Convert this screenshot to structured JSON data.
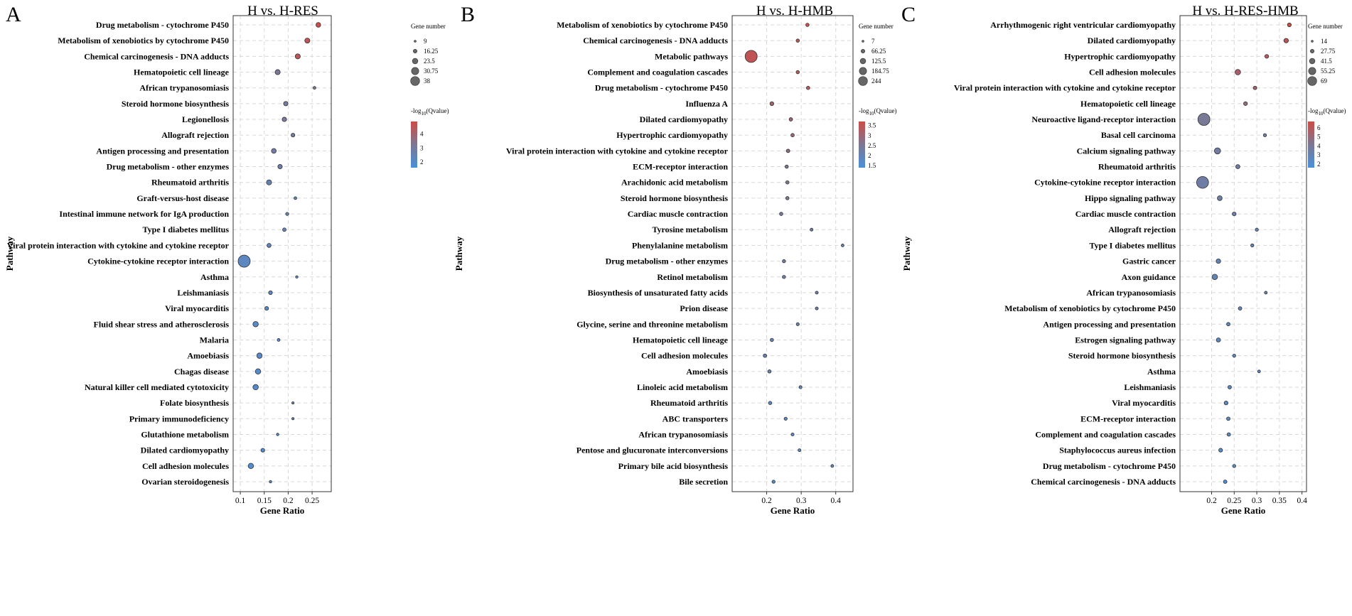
{
  "panels": [
    {
      "letter": "A",
      "title": "H vs. H-RES",
      "xlabel": "Gene Ratio",
      "ylabel": "Pathway"
    },
    {
      "letter": "B",
      "title": "H vs. H-HMB",
      "xlabel": "Gene Ratio",
      "ylabel": "Pathway"
    },
    {
      "letter": "C",
      "title": "H vs. H-RES-HMB",
      "xlabel": "Gene Ratio",
      "ylabel": "Pathway"
    }
  ],
  "legend_labels": {
    "size_title": "Gene number",
    "color_title": "-log",
    "color_sub": "10",
    "color_tail": "(Qvalue)"
  },
  "colors": {
    "high": "#cf4b45",
    "mid": "#7b7793",
    "low": "#4a90d9"
  },
  "chart_data": [
    {
      "type": "scatter",
      "title": "H vs. H-RES",
      "xlabel": "Gene Ratio",
      "ylabel": "Pathway",
      "xlim": [
        0.085,
        0.29
      ],
      "xticks": [
        0.1,
        0.15,
        0.2,
        0.25
      ],
      "xtick_labels": [
        "0.1",
        "0.15",
        "0.2",
        "0.25"
      ],
      "size_legend": [
        9,
        16.25,
        23.5,
        30.75,
        38
      ],
      "size_range": [
        9,
        38
      ],
      "color_legend": [
        4,
        3,
        2
      ],
      "color_range": [
        1.6,
        4.9
      ],
      "categories": [
        "Drug metabolism - cytochrome P450",
        "Metabolism of xenobiotics by cytochrome P450",
        "Chemical carcinogenesis - DNA adducts",
        "Hematopoietic cell lineage",
        "African trypanosomiasis",
        "Steroid hormone biosynthesis",
        "Legionellosis",
        "Allograft rejection",
        "Antigen processing and presentation",
        "Drug metabolism - other enzymes",
        "Rheumatoid arthritis",
        "Graft-versus-host disease",
        "Intestinal immune network for IgA production",
        "Type I diabetes mellitus",
        "Viral protein interaction with cytokine and cytokine receptor",
        "Cytokine-cytokine receptor interaction",
        "Asthma",
        "Leishmaniasis",
        "Viral myocarditis",
        "Fluid shear stress and atherosclerosis",
        "Malaria",
        "Amoebiasis",
        "Chagas disease",
        "Natural killer cell mediated cytotoxicity",
        "Folate biosynthesis",
        "Primary immunodeficiency",
        "Glutathione metabolism",
        "Dilated cardiomyopathy",
        "Cell adhesion molecules",
        "Ovarian steroidogenesis"
      ],
      "gene_ratio": [
        0.263,
        0.24,
        0.22,
        0.178,
        0.255,
        0.195,
        0.192,
        0.21,
        0.17,
        0.183,
        0.16,
        0.215,
        0.198,
        0.192,
        0.16,
        0.108,
        0.218,
        0.163,
        0.155,
        0.132,
        0.18,
        0.14,
        0.137,
        0.132,
        0.21,
        0.21,
        0.178,
        0.147,
        0.122,
        0.163
      ],
      "gene_number": [
        15,
        16,
        16,
        16,
        9,
        14,
        14,
        12,
        15,
        14,
        16,
        9,
        10,
        11,
        13,
        38,
        8,
        12,
        12,
        17,
        9,
        17,
        17,
        17,
        7,
        7,
        8,
        12,
        17,
        8
      ],
      "neg_log10_q": [
        4.9,
        4.6,
        4.5,
        3.2,
        3.1,
        3.0,
        3.0,
        2.9,
        2.8,
        2.8,
        2.6,
        2.6,
        2.4,
        2.3,
        2.3,
        2.2,
        2.2,
        2.1,
        2.1,
        2.0,
        2.0,
        2.0,
        1.9,
        1.9,
        1.9,
        1.9,
        1.8,
        1.8,
        1.8,
        1.7
      ]
    },
    {
      "type": "scatter",
      "title": "H vs. H-HMB",
      "xlabel": "Gene Ratio",
      "ylabel": "Pathway",
      "xlim": [
        0.1,
        0.45
      ],
      "xticks": [
        0.2,
        0.3,
        0.4
      ],
      "xtick_labels": [
        "0.2",
        "0.3",
        "0.4"
      ],
      "size_legend": [
        7,
        66.25,
        125.5,
        184.75,
        244
      ],
      "size_range": [
        7,
        244
      ],
      "color_legend": [
        3.5,
        3,
        2.5,
        2,
        1.5
      ],
      "color_range": [
        1.4,
        3.7
      ],
      "categories": [
        "Metabolism of xenobiotics by cytochrome P450",
        "Chemical carcinogenesis - DNA adducts",
        "Metabolic pathways",
        "Complement and coagulation cascades",
        "Drug metabolism - cytochrome P450",
        "Influenza A",
        "Dilated cardiomyopathy",
        "Hypertrophic cardiomyopathy",
        "Viral protein interaction with cytokine and cytokine receptor",
        "ECM-receptor interaction",
        "Arachidonic acid metabolism",
        "Steroid hormone biosynthesis",
        "Cardiac muscle contraction",
        "Tyrosine metabolism",
        "Phenylalanine metabolism",
        "Drug metabolism - other enzymes",
        "Retinol metabolism",
        "Biosynthesis of unsaturated fatty acids",
        "Prion disease",
        "Glycine, serine and threonine metabolism",
        "Hematopoietic cell lineage",
        "Cell adhesion molecules",
        "Amoebiasis",
        "Linoleic acid metabolism",
        "Rheumatoid arthritis",
        "ABC transporters",
        "African trypanosomiasis",
        "Pentose and glucuronate interconversions",
        "Primary bile acid biosynthesis",
        "Bile secretion"
      ],
      "gene_ratio": [
        0.318,
        0.29,
        0.155,
        0.29,
        0.32,
        0.215,
        0.27,
        0.275,
        0.262,
        0.258,
        0.26,
        0.26,
        0.242,
        0.33,
        0.42,
        0.25,
        0.25,
        0.345,
        0.345,
        0.29,
        0.215,
        0.195,
        0.208,
        0.298,
        0.21,
        0.255,
        0.275,
        0.295,
        0.39,
        0.22
      ],
      "gene_number": [
        20,
        20,
        244,
        20,
        22,
        34,
        24,
        22,
        24,
        20,
        20,
        20,
        20,
        9,
        6,
        17,
        17,
        10,
        10,
        12,
        20,
        24,
        20,
        12,
        20,
        14,
        12,
        9,
        7,
        14
      ],
      "neg_log10_q": [
        3.6,
        3.5,
        3.5,
        3.4,
        3.4,
        3.1,
        3.1,
        2.9,
        2.8,
        2.6,
        2.6,
        2.5,
        2.4,
        2.3,
        2.3,
        2.2,
        2.2,
        2.2,
        2.2,
        2.1,
        2.1,
        2.0,
        2.0,
        1.9,
        1.9,
        1.9,
        1.8,
        1.7,
        1.7,
        1.5
      ]
    },
    {
      "type": "scatter",
      "title": "H vs. H-RES-HMB",
      "xlabel": "Gene Ratio",
      "ylabel": "Pathway",
      "xlim": [
        0.13,
        0.41
      ],
      "xticks": [
        0.2,
        0.25,
        0.3,
        0.35,
        0.4
      ],
      "xtick_labels": [
        "0.2",
        "0.25",
        "0.3",
        "0.35",
        "0.4"
      ],
      "size_legend": [
        14,
        27.75,
        41.5,
        55.25,
        69
      ],
      "size_range": [
        14,
        69
      ],
      "color_legend": [
        6,
        5,
        4,
        3,
        2
      ],
      "color_range": [
        1.6,
        6.7
      ],
      "categories": [
        "Arrhythmogenic right ventricular cardiomyopathy",
        "Dilated cardiomyopathy",
        "Hypertrophic cardiomyopathy",
        "Cell adhesion molecules",
        "Viral protein interaction with cytokine and cytokine receptor",
        "Hematopoietic cell lineage",
        "Neuroactive ligand-receptor interaction",
        "Basal cell carcinoma",
        "Calcium signaling pathway",
        "Rheumatoid arthritis",
        "Cytokine-cytokine receptor interaction",
        "Hippo signaling pathway",
        "Cardiac muscle contraction",
        "Allograft rejection",
        "Type I diabetes mellitus",
        "Gastric cancer",
        "Axon guidance",
        "African trypanosomiasis",
        "Metabolism of xenobiotics by cytochrome P450",
        "Antigen processing and presentation",
        "Estrogen signaling pathway",
        "Steroid hormone biosynthesis",
        "Asthma",
        "Leishmaniasis",
        "Viral myocarditis",
        "ECM-receptor interaction",
        "Complement and coagulation cascades",
        "Staphylococcus aureus infection",
        "Drug metabolism - cytochrome P450",
        "Chemical carcinogenesis - DNA adducts"
      ],
      "gene_ratio": [
        0.372,
        0.365,
        0.322,
        0.258,
        0.296,
        0.275,
        0.183,
        0.318,
        0.213,
        0.258,
        0.18,
        0.218,
        0.25,
        0.3,
        0.29,
        0.215,
        0.207,
        0.32,
        0.263,
        0.237,
        0.215,
        0.25,
        0.305,
        0.24,
        0.232,
        0.237,
        0.238,
        0.22,
        0.25,
        0.23
      ],
      "gene_number": [
        20,
        24,
        20,
        30,
        18,
        20,
        69,
        16,
        34,
        22,
        68,
        26,
        20,
        16,
        16,
        24,
        30,
        14,
        18,
        18,
        22,
        16,
        14,
        18,
        20,
        18,
        18,
        20,
        16,
        18
      ],
      "neg_log10_q": [
        6.7,
        6.3,
        5.9,
        5.6,
        5.3,
        4.9,
        4.0,
        3.7,
        3.6,
        3.6,
        3.5,
        3.3,
        3.2,
        3.0,
        3.0,
        2.9,
        2.9,
        2.8,
        2.6,
        2.5,
        2.5,
        2.4,
        2.4,
        2.3,
        2.3,
        2.2,
        2.2,
        2.1,
        2.1,
        2.0
      ]
    }
  ]
}
